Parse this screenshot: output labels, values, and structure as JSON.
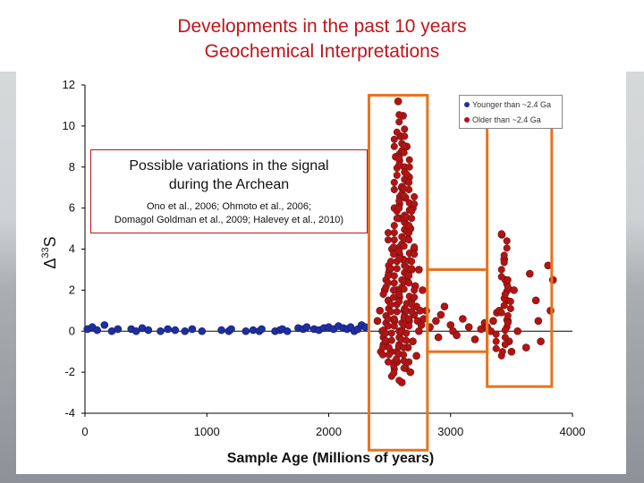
{
  "slide": {
    "title_line1": "Developments in the past 10 years",
    "title_line2": "Geochemical Interpretations"
  },
  "annotation": {
    "heading_line1": "Possible variations in the signal",
    "heading_line2": "during the Archean",
    "refs_line1": "Ono et al., 2006; Ohmoto et al., 2006;",
    "refs_line2": "Domagol Goldman et al., 2009; Halevey et al., 2010)"
  },
  "colors": {
    "title": "#c0141c",
    "young": "#1f2fa0",
    "old": "#b01515",
    "highlight_box": "#e8731e"
  },
  "chart_data": {
    "type": "scatter",
    "title": "",
    "xlabel": "Sample Age (Millions of years)",
    "ylabel_symbol": "Δ",
    "ylabel_sup": "33",
    "ylabel_main": "S",
    "xlim": [
      0,
      4000
    ],
    "ylim": [
      -4,
      12
    ],
    "x_ticks": [
      0,
      1000,
      2000,
      3000,
      4000
    ],
    "y_ticks": [
      -4,
      -2,
      0,
      2,
      4,
      6,
      8,
      10,
      12
    ],
    "legend": [
      "Younger than ~2.4 Ga",
      "Older than ~2.4 Ga"
    ],
    "series": [
      {
        "name": "Younger than ~2.4 Ga",
        "color": "#1f2fa0",
        "x": [
          20,
          60,
          100,
          160,
          220,
          270,
          380,
          420,
          470,
          520,
          620,
          680,
          740,
          820,
          880,
          960,
          1120,
          1180,
          1200,
          1320,
          1380,
          1430,
          1450,
          1560,
          1600,
          1620,
          1660,
          1750,
          1790,
          1820,
          1880,
          1920,
          1960,
          2000,
          2040,
          2080,
          2120,
          2150,
          2180,
          2210,
          2240,
          2270,
          2300
        ],
        "y": [
          0.1,
          0.2,
          0.05,
          0.3,
          0.0,
          0.1,
          0.1,
          0.0,
          0.15,
          0.05,
          0.0,
          0.1,
          0.05,
          0.0,
          0.1,
          0.0,
          0.05,
          0.0,
          0.1,
          0.0,
          0.05,
          0.0,
          0.1,
          0.0,
          0.05,
          0.1,
          0.0,
          0.15,
          0.1,
          0.2,
          0.1,
          0.05,
          0.15,
          0.2,
          0.1,
          0.25,
          0.15,
          0.1,
          0.2,
          0.0,
          0.1,
          0.3,
          0.2
        ]
      },
      {
        "name": "Older than ~2.4 Ga",
        "color": "#b01515",
        "x": [
          2400,
          2420,
          2440,
          2460,
          2470,
          2490,
          2500,
          2510,
          2520,
          2540,
          2540,
          2550,
          2560,
          2560,
          2570,
          2580,
          2580,
          2590,
          2600,
          2600,
          2610,
          2610,
          2620,
          2620,
          2630,
          2630,
          2640,
          2640,
          2650,
          2650,
          2660,
          2660,
          2670,
          2670,
          2680,
          2680,
          2690,
          2690,
          2700,
          2700,
          2710,
          2720,
          2720,
          2730,
          2740,
          2740,
          2750,
          2760,
          2770,
          2780,
          2800,
          2830,
          2880,
          2900,
          2920,
          2950,
          3000,
          3020,
          3050,
          3100,
          3150,
          3200,
          3250,
          3280,
          3300,
          3330,
          3350,
          3380,
          3400,
          3420,
          3440,
          3450,
          3460,
          3470,
          3480,
          3500,
          3520,
          3550,
          3620,
          3650,
          3700,
          3720,
          3740,
          3800,
          3820,
          3840
        ],
        "y": [
          0.5,
          1.0,
          0.0,
          2.0,
          -0.5,
          1.5,
          3.0,
          -1.0,
          4.0,
          6.0,
          0.5,
          8.5,
          2.0,
          -1.5,
          11.2,
          5.5,
          0.0,
          9.5,
          7.0,
          -2.5,
          10.5,
          3.5,
          8.0,
          1.0,
          6.5,
          -1.8,
          9.0,
          2.5,
          4.5,
          -0.8,
          7.5,
          0.5,
          5.0,
          -2.0,
          3.0,
          1.5,
          6.0,
          -0.5,
          4.0,
          0.8,
          2.2,
          1.2,
          -1.2,
          0.5,
          3.0,
          0.0,
          1.0,
          0.3,
          2.0,
          0.6,
          1.0,
          0.2,
          0.5,
          -0.3,
          0.8,
          1.2,
          0.3,
          0.0,
          -0.2,
          0.6,
          0.2,
          -0.4,
          0.1,
          0.4,
          0.2,
          0.0,
          0.5,
          0.9,
          1.0,
          4.7,
          3.5,
          2.5,
          1.5,
          0.5,
          -0.5,
          -1.0,
          2.0,
          0.0,
          -0.8,
          2.8,
          1.5,
          0.5,
          -0.5,
          3.2,
          1.0,
          2.5
        ]
      }
    ],
    "highlight_boxes": [
      {
        "x": [
          2330,
          2810
        ],
        "y": [
          -5.8,
          11.5
        ]
      },
      {
        "x": [
          2810,
          3300
        ],
        "y": [
          -1.0,
          3.0
        ]
      },
      {
        "x": [
          3300,
          3830
        ],
        "y": [
          -2.7,
          10.8
        ]
      }
    ]
  }
}
